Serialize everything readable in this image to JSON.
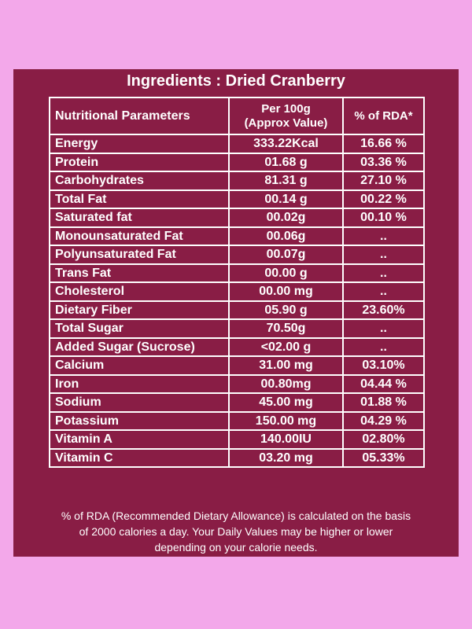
{
  "title": "Ingredients : Dried Cranberry",
  "table": {
    "header": [
      "Nutritional Parameters",
      "Per 100g\n(Approx Value)",
      "% of RDA*"
    ],
    "rows": [
      [
        "Energy",
        "333.22Kcal",
        "16.66 %"
      ],
      [
        "Protein",
        "01.68 g",
        "03.36 %"
      ],
      [
        "Carbohydrates",
        "81.31 g",
        "27.10 %"
      ],
      [
        "Total Fat",
        "00.14 g",
        "00.22 %"
      ],
      [
        "Saturated fat",
        "00.02g",
        "00.10 %"
      ],
      [
        "Monounsaturated Fat",
        "00.06g",
        ".."
      ],
      [
        "Polyunsaturated Fat",
        "00.07g",
        ".."
      ],
      [
        "Trans Fat",
        "00.00 g",
        ".."
      ],
      [
        "Cholesterol",
        "00.00 mg",
        ".."
      ],
      [
        "Dietary Fiber",
        "05.90 g",
        "23.60%"
      ],
      [
        "Total Sugar",
        "70.50g",
        ".."
      ],
      [
        "Added Sugar (Sucrose)",
        "<02.00 g",
        ".."
      ],
      [
        "Calcium",
        "31.00 mg",
        "03.10%"
      ],
      [
        "Iron",
        "00.80mg",
        "04.44 %"
      ],
      [
        "Sodium",
        "45.00 mg",
        "01.88 %"
      ],
      [
        "Potassium",
        "150.00 mg",
        "04.29 %"
      ],
      [
        "Vitamin A",
        "140.00IU",
        "02.80%"
      ],
      [
        "Vitamin C",
        "03.20 mg",
        "05.33%"
      ]
    ]
  },
  "footnote": [
    "% of RDA (Recommended Dietary Allowance) is calculated on the basis",
    "of 2000 calories a day. Your Daily Values may be higher or lower",
    "depending on your calorie needs."
  ]
}
